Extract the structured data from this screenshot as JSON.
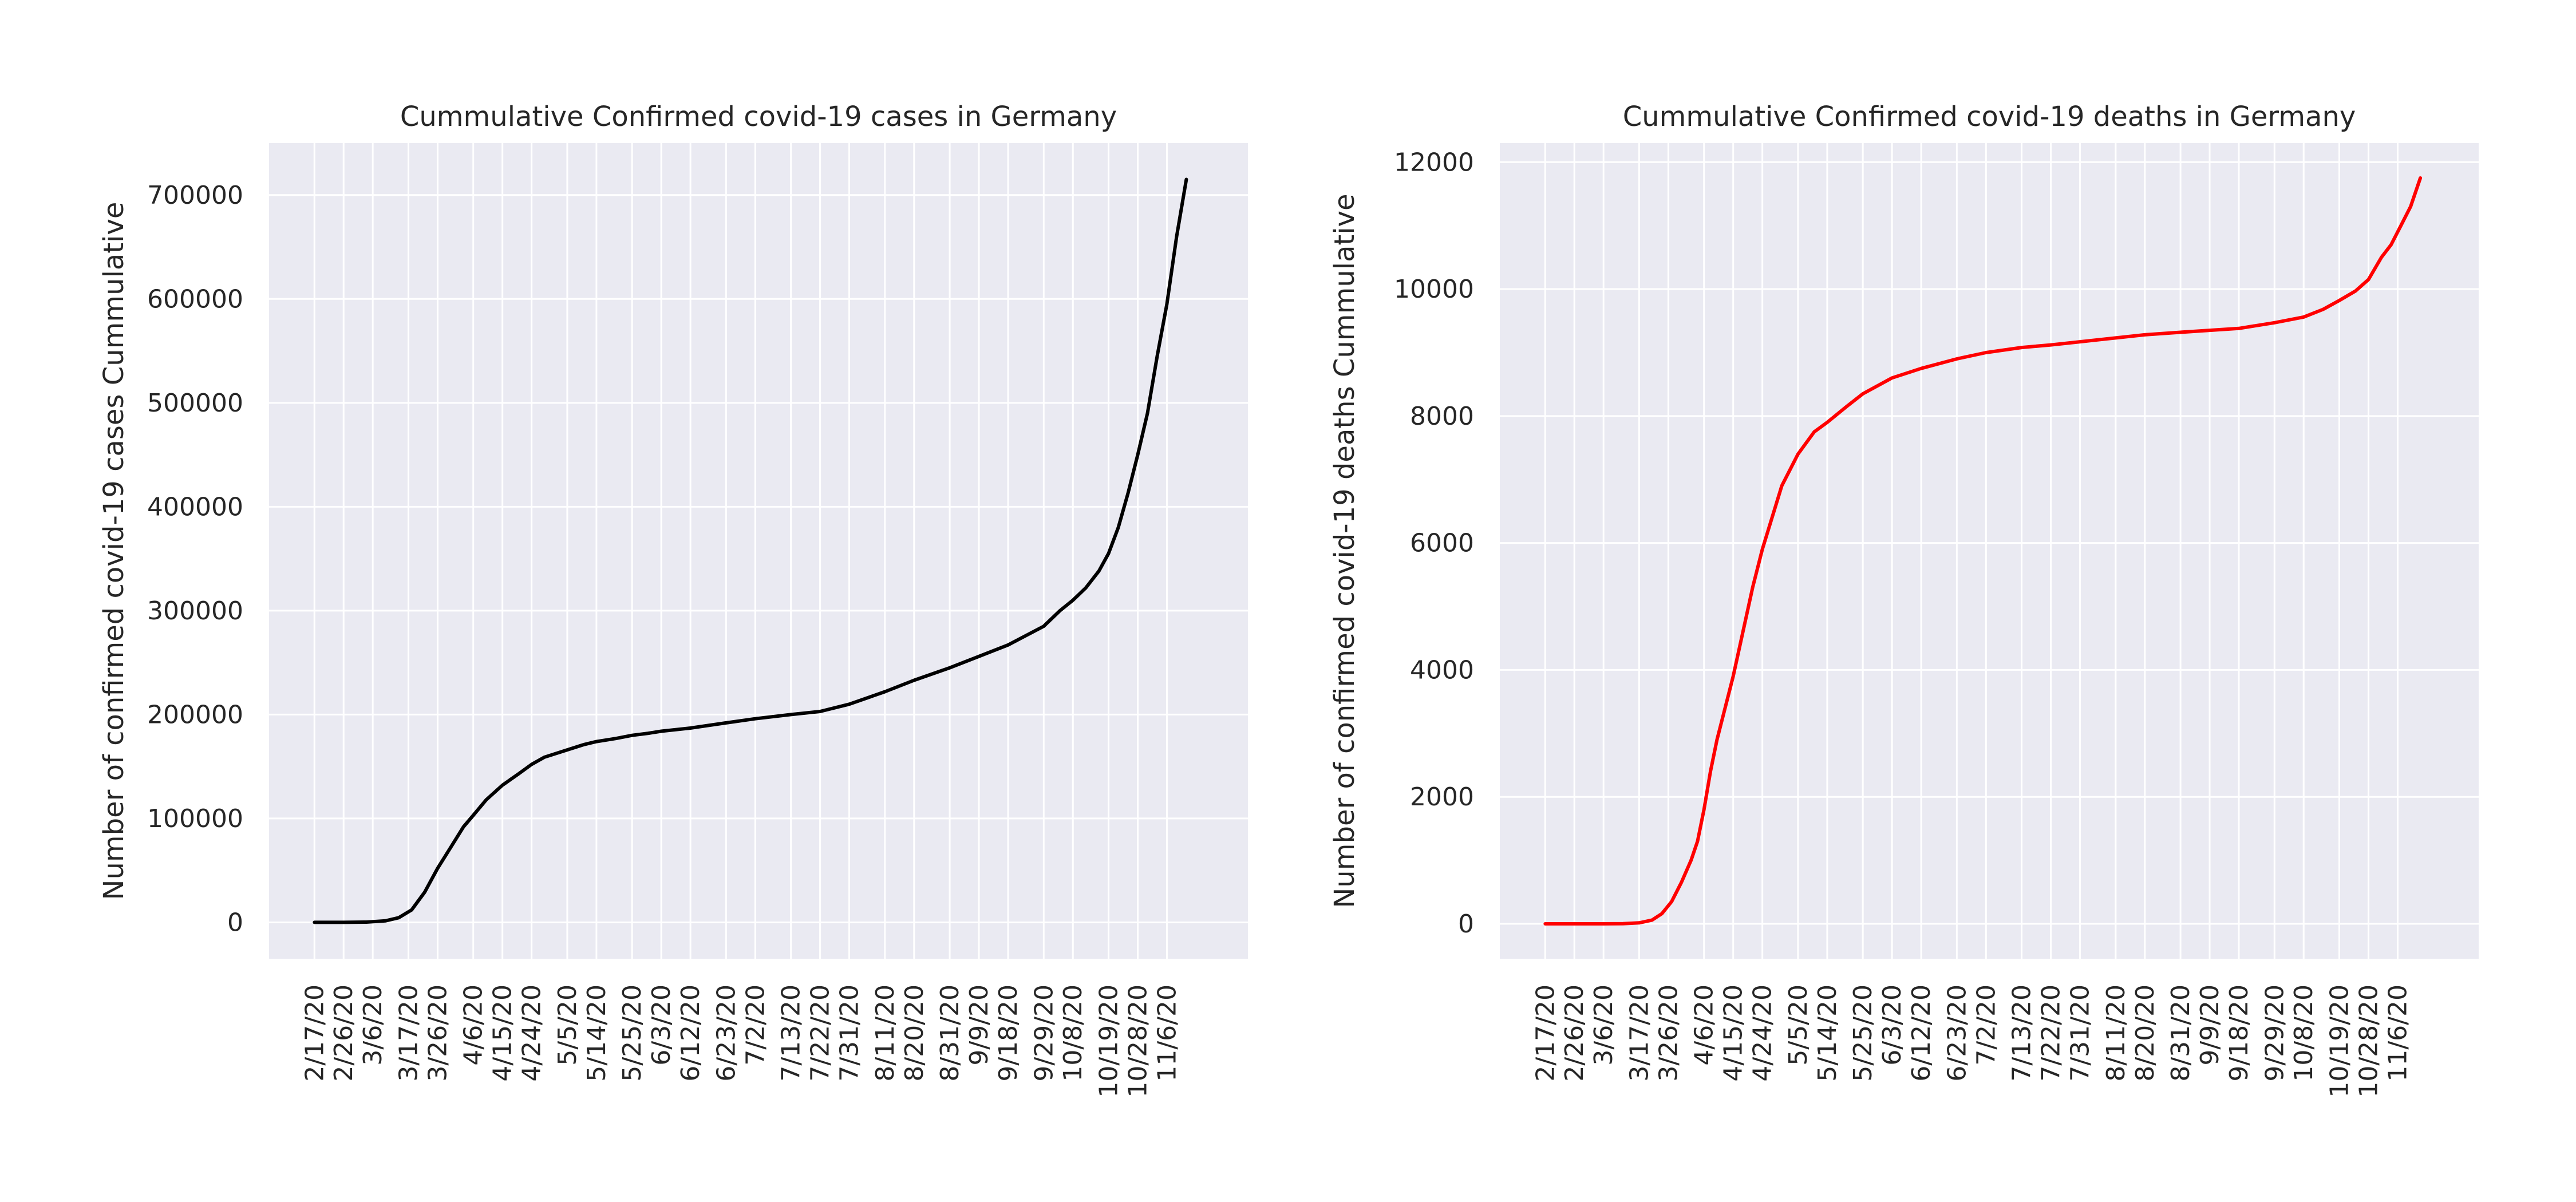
{
  "chart_data": [
    {
      "type": "line",
      "title": "Cummulative Confirmed covid-19 cases in Germany",
      "xlabel": "",
      "ylabel": "Number of confirmed covid-19 cases Cummulative",
      "x_tick_labels": [
        "2/17/20",
        "2/26/20",
        "3/6/20",
        "3/17/20",
        "3/26/20",
        "4/6/20",
        "4/15/20",
        "4/24/20",
        "5/5/20",
        "5/14/20",
        "5/25/20",
        "6/3/20",
        "6/12/20",
        "6/23/20",
        "7/2/20",
        "7/13/20",
        "7/22/20",
        "7/31/20",
        "8/11/20",
        "8/20/20",
        "8/31/20",
        "9/9/20",
        "9/18/20",
        "9/29/20",
        "10/8/20",
        "10/19/20",
        "10/28/20",
        "11/6/20"
      ],
      "y_ticks": [
        0,
        100000,
        200000,
        300000,
        400000,
        500000,
        600000,
        700000
      ],
      "ylim": [
        -35000,
        750000
      ],
      "xlim": [
        "2/3/20",
        "12/1/20"
      ],
      "grid": true,
      "color": "#000000",
      "x": [
        "2/17/20",
        "2/26/20",
        "3/4/20",
        "3/10/20",
        "3/14/20",
        "3/18/20",
        "3/22/20",
        "3/26/20",
        "3/30/20",
        "4/3/20",
        "4/6/20",
        "4/10/20",
        "4/15/20",
        "4/20/20",
        "4/24/20",
        "4/28/20",
        "5/5/20",
        "5/10/20",
        "5/14/20",
        "5/20/20",
        "5/25/20",
        "5/30/20",
        "6/3/20",
        "6/12/20",
        "6/23/20",
        "7/2/20",
        "7/13/20",
        "7/22/20",
        "7/31/20",
        "8/11/20",
        "8/20/20",
        "8/31/20",
        "9/9/20",
        "9/18/20",
        "9/29/20",
        "10/4/20",
        "10/8/20",
        "10/12/20",
        "10/16/20",
        "10/19/20",
        "10/22/20",
        "10/25/20",
        "10/28/20",
        "10/31/20",
        "11/3/20",
        "11/6/20",
        "11/9/20",
        "11/12/20"
      ],
      "y": [
        16,
        16,
        240,
        1500,
        4500,
        12000,
        29000,
        52000,
        72000,
        92000,
        103000,
        118000,
        132000,
        143000,
        152000,
        159000,
        166000,
        171000,
        174000,
        177000,
        180000,
        182000,
        184000,
        187000,
        192000,
        196000,
        200000,
        203000,
        210000,
        222000,
        233000,
        245000,
        256000,
        267000,
        285000,
        300000,
        310000,
        322000,
        338000,
        355000,
        380000,
        413000,
        450000,
        490000,
        545000,
        595000,
        660000,
        715000
      ]
    },
    {
      "type": "line",
      "title": "Cummulative Confirmed covid-19 deaths in Germany",
      "xlabel": "",
      "ylabel": "Number of confirmed covid-19 deaths Cummulative",
      "x_tick_labels": [
        "2/17/20",
        "2/26/20",
        "3/6/20",
        "3/17/20",
        "3/26/20",
        "4/6/20",
        "4/15/20",
        "4/24/20",
        "5/5/20",
        "5/14/20",
        "5/25/20",
        "6/3/20",
        "6/12/20",
        "6/23/20",
        "7/2/20",
        "7/13/20",
        "7/22/20",
        "7/31/20",
        "8/11/20",
        "8/20/20",
        "8/31/20",
        "9/9/20",
        "9/18/20",
        "9/29/20",
        "10/8/20",
        "10/19/20",
        "10/28/20",
        "11/6/20"
      ],
      "y_ticks": [
        0,
        2000,
        4000,
        6000,
        8000,
        10000,
        12000
      ],
      "ylim": [
        -550,
        12300
      ],
      "xlim": [
        "2/3/20",
        "12/1/20"
      ],
      "grid": true,
      "color": "#ff0000",
      "x": [
        "2/17/20",
        "2/26/20",
        "3/6/20",
        "3/12/20",
        "3/17/20",
        "3/21/20",
        "3/24/20",
        "3/27/20",
        "3/30/20",
        "4/2/20",
        "4/4/20",
        "4/6/20",
        "4/8/20",
        "4/10/20",
        "4/12/20",
        "4/15/20",
        "4/18/20",
        "4/21/20",
        "4/24/20",
        "4/27/20",
        "4/30/20",
        "5/5/20",
        "5/10/20",
        "5/14/20",
        "5/20/20",
        "5/25/20",
        "6/3/20",
        "6/12/20",
        "6/23/20",
        "7/2/20",
        "7/13/20",
        "7/22/20",
        "7/31/20",
        "8/11/20",
        "8/20/20",
        "8/31/20",
        "9/9/20",
        "9/18/20",
        "9/29/20",
        "10/8/20",
        "10/14/20",
        "10/19/20",
        "10/24/20",
        "10/28/20",
        "11/1/20",
        "11/4/20",
        "11/7/20",
        "11/10/20",
        "11/13/20"
      ],
      "y": [
        0,
        0,
        0,
        3,
        15,
        60,
        160,
        350,
        650,
        1000,
        1300,
        1800,
        2400,
        2900,
        3300,
        3900,
        4600,
        5300,
        5900,
        6400,
        6900,
        7400,
        7750,
        7900,
        8150,
        8350,
        8600,
        8750,
        8900,
        9000,
        9080,
        9120,
        9170,
        9230,
        9280,
        9320,
        9350,
        9380,
        9470,
        9560,
        9680,
        9820,
        9970,
        10150,
        10500,
        10700,
        11000,
        11300,
        11750
      ]
    }
  ]
}
